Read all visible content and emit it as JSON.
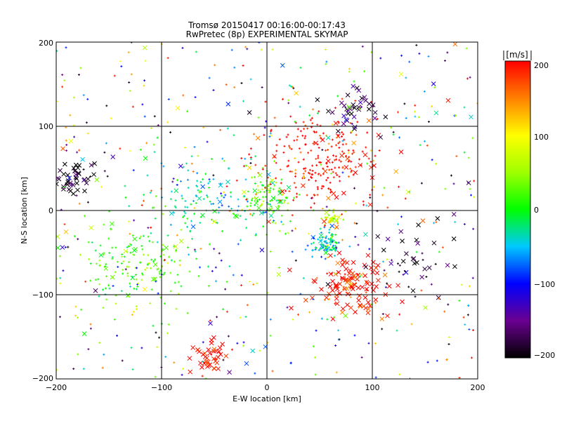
{
  "chart_data": {
    "type": "scatter",
    "title": "Tromsø 20150417 00:16:00-00:17:43",
    "subtitle": "RwPretec (8p) EXPERIMENTAL SKYMAP",
    "xlabel": "E-W location [km]",
    "ylabel": "N-S location [km]",
    "xlim": [
      -200,
      200
    ],
    "ylim": [
      -200,
      200
    ],
    "xticks": [
      "−200",
      "−100",
      "0",
      "100",
      "200"
    ],
    "yticks": [
      "−200",
      "−100",
      "0",
      "100",
      "200"
    ],
    "grid": true,
    "colorbar": {
      "label": "[m/s]",
      "range": [
        -200,
        200
      ],
      "ticks": [
        "200",
        "100",
        "0",
        "−100",
        "−200"
      ]
    },
    "clusters": [
      {
        "x": -180,
        "y": 40,
        "spread": 18,
        "velocity": -200,
        "marker": "x",
        "count": 45
      },
      {
        "x": 80,
        "y": -90,
        "spread": 28,
        "velocity": 200,
        "marker": "x",
        "count": 120
      },
      {
        "x": -55,
        "y": -175,
        "spread": 15,
        "velocity": 200,
        "marker": "x",
        "count": 45
      },
      {
        "x": 55,
        "y": -40,
        "spread": 12,
        "velocity": -40,
        "marker": "+",
        "count": 90
      },
      {
        "x": 60,
        "y": -10,
        "spread": 10,
        "velocity": 70,
        "marker": "+",
        "count": 40
      },
      {
        "x": 0,
        "y": 15,
        "spread": 25,
        "velocity": 20,
        "marker": "+",
        "count": 110
      },
      {
        "x": -60,
        "y": 10,
        "spread": 40,
        "velocity": -30,
        "marker": "+",
        "count": 110
      },
      {
        "x": 50,
        "y": 60,
        "spread": 50,
        "velocity": 200,
        "marker": "+",
        "count": 260
      },
      {
        "x": 80,
        "y": 120,
        "spread": 25,
        "velocity": -180,
        "marker": "x",
        "count": 40
      },
      {
        "x": 130,
        "y": -60,
        "spread": 40,
        "velocity": -190,
        "marker": "x",
        "count": 40
      },
      {
        "x": -120,
        "y": -60,
        "spread": 50,
        "velocity": 20,
        "marker": "+",
        "count": 170
      },
      {
        "x": 0,
        "y": 0,
        "spread": 200,
        "velocity": 0,
        "marker": "+",
        "count": 500
      }
    ]
  }
}
